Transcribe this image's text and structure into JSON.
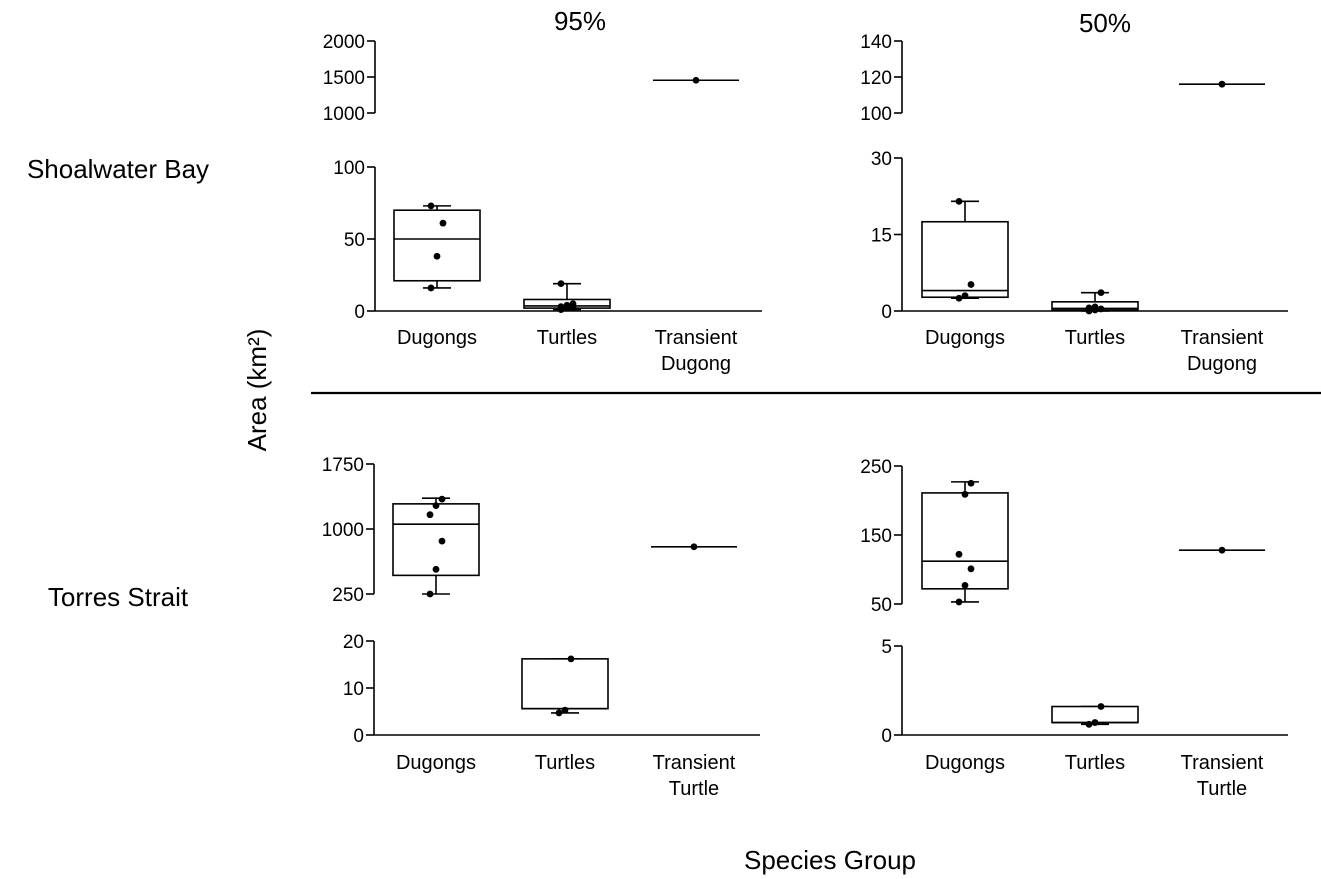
{
  "figure": {
    "column_titles": [
      "95%",
      "50%"
    ],
    "row_labels": [
      "Shoalwater Bay",
      "Torres Strait"
    ],
    "y_axis_label": "Area (km²)",
    "x_axis_label": "Species Group",
    "line_color": "#000000",
    "background": "#ffffff"
  },
  "chart_data": [
    {
      "type": "box",
      "region": "Shoalwater Bay",
      "contour": "95%",
      "categories": [
        "Dugongs",
        "Turtles",
        "Transient\nDugong"
      ],
      "y_axis_break": true,
      "segments": [
        {
          "ylim": [
            0,
            100
          ],
          "ticks": [
            0,
            50,
            100
          ]
        },
        {
          "ylim": [
            1000,
            2000
          ],
          "ticks": [
            1000,
            1500,
            2000
          ]
        }
      ],
      "groups": [
        {
          "name": "Dugongs",
          "min": 16,
          "q1": 21,
          "median": 50,
          "q3": 70,
          "max": 73,
          "points": [
            16,
            38,
            61,
            73
          ]
        },
        {
          "name": "Turtles",
          "min": 1,
          "q1": 2,
          "median": 3.5,
          "q3": 8,
          "max": 19,
          "points": [
            1,
            2,
            2.5,
            3,
            4,
            5,
            19
          ]
        },
        {
          "name": "Transient Dugong",
          "median": 1455,
          "points": [
            1455
          ]
        }
      ]
    },
    {
      "type": "box",
      "region": "Shoalwater Bay",
      "contour": "50%",
      "categories": [
        "Dugongs",
        "Turtles",
        "Transient\nDugong"
      ],
      "y_axis_break": true,
      "segments": [
        {
          "ylim": [
            0,
            30
          ],
          "ticks": [
            0,
            15,
            30
          ]
        },
        {
          "ylim": [
            100,
            140
          ],
          "ticks": [
            100,
            120,
            140
          ]
        }
      ],
      "groups": [
        {
          "name": "Dugongs",
          "min": 2.5,
          "q1": 2.7,
          "median": 4,
          "q3": 17.5,
          "max": 21.5,
          "points": [
            2.5,
            3,
            5.2,
            21.5
          ]
        },
        {
          "name": "Turtles",
          "min": 0,
          "q1": 0.2,
          "median": 0.5,
          "q3": 1.8,
          "max": 3.6,
          "points": [
            0,
            0.2,
            0.4,
            0.6,
            0.8,
            3.6
          ]
        },
        {
          "name": "Transient Dugong",
          "median": 116,
          "points": [
            116
          ]
        }
      ]
    },
    {
      "type": "box",
      "region": "Torres Strait",
      "contour": "95%",
      "categories": [
        "Dugongs",
        "Turtles",
        "Transient\nTurtle"
      ],
      "y_axis_break": true,
      "segments": [
        {
          "ylim": [
            0,
            20
          ],
          "ticks": [
            0,
            10,
            20
          ]
        },
        {
          "ylim": [
            250,
            1750
          ],
          "ticks": [
            250,
            1000,
            1750
          ]
        }
      ],
      "groups": [
        {
          "name": "Dugongs",
          "min": 245,
          "q1": 465,
          "median": 1055,
          "q3": 1290,
          "max": 1355,
          "points": [
            245,
            535,
            860,
            1165,
            1270,
            1345
          ]
        },
        {
          "name": "Turtles",
          "min": 4.7,
          "q1": 5.6,
          "median": 5.6,
          "q3": 16.2,
          "max": 16.2,
          "points": [
            4.7,
            5.3,
            16.2
          ]
        },
        {
          "name": "Transient Turtle",
          "median": 795,
          "points": [
            795
          ]
        }
      ]
    },
    {
      "type": "box",
      "region": "Torres Strait",
      "contour": "50%",
      "categories": [
        "Dugongs",
        "Turtles",
        "Transient\nTurtle"
      ],
      "y_axis_break": true,
      "segments": [
        {
          "ylim": [
            0,
            5
          ],
          "ticks": [
            0,
            5
          ]
        },
        {
          "ylim": [
            50,
            250
          ],
          "ticks": [
            50,
            150,
            250
          ]
        }
      ],
      "groups": [
        {
          "name": "Dugongs",
          "min": 53,
          "q1": 72,
          "median": 112,
          "q3": 211,
          "max": 227,
          "points": [
            53,
            77,
            101,
            122,
            209,
            225
          ]
        },
        {
          "name": "Turtles",
          "min": 0.6,
          "q1": 0.7,
          "median": 0.7,
          "q3": 1.6,
          "max": 1.6,
          "points": [
            0.6,
            0.7,
            1.6
          ]
        },
        {
          "name": "Transient Turtle",
          "median": 128,
          "points": [
            128
          ]
        }
      ]
    }
  ]
}
